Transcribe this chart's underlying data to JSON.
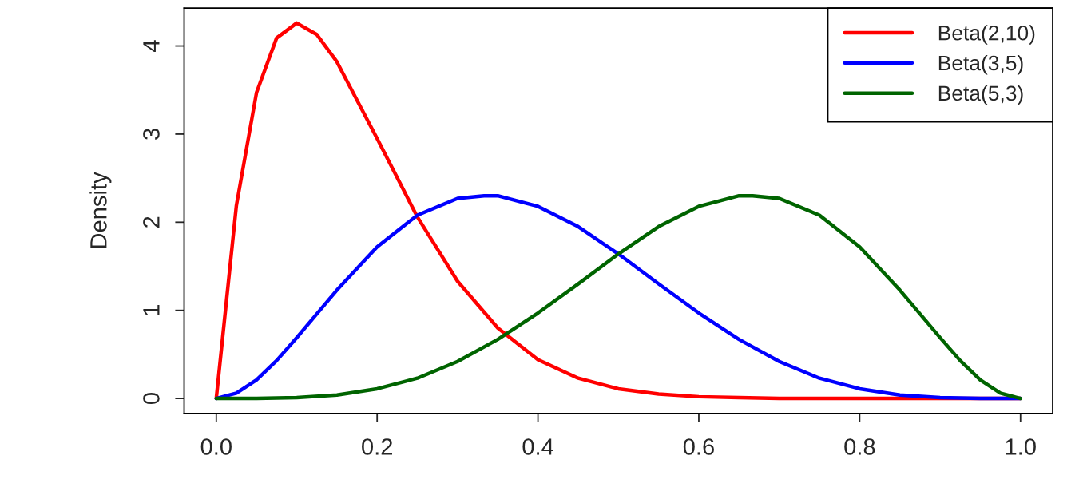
{
  "chart_data": {
    "type": "line",
    "ylabel": "Density",
    "xlim": [
      -0.04,
      1.04
    ],
    "ylim": [
      -0.17,
      4.43
    ],
    "xticks": [
      {
        "value": 0,
        "label": "0.0"
      },
      0.2,
      0.4,
      0.6,
      0.8,
      {
        "value": 1,
        "label": "1.0"
      }
    ],
    "yticks": [
      0,
      1,
      2,
      3,
      4
    ],
    "grid": false,
    "legend": "top right",
    "marker": "none",
    "line_style": "solid",
    "series": [
      {
        "name": "Beta(2,10)",
        "color": "#ff0000",
        "x": [
          0,
          0.025,
          0.05,
          0.075,
          0.1,
          0.125,
          0.15,
          0.2,
          0.25,
          0.3,
          0.35,
          0.4,
          0.45,
          0.5,
          0.55,
          0.6,
          0.65,
          0.7,
          0.8,
          0.9,
          1.0
        ],
        "values": [
          0,
          2.19,
          3.47,
          4.09,
          4.26,
          4.13,
          3.82,
          2.95,
          2.06,
          1.33,
          0.8,
          0.44,
          0.23,
          0.11,
          0.05,
          0.02,
          0.01,
          0,
          0,
          0,
          0
        ]
      },
      {
        "name": "Beta(3,5)",
        "color": "#0000ff",
        "x": [
          0,
          0.025,
          0.05,
          0.075,
          0.1,
          0.125,
          0.15,
          0.2,
          0.25,
          0.3,
          0.333,
          0.35,
          0.4,
          0.45,
          0.5,
          0.55,
          0.6,
          0.65,
          0.7,
          0.75,
          0.8,
          0.85,
          0.9,
          0.95,
          1.0
        ],
        "values": [
          0,
          0.06,
          0.21,
          0.43,
          0.69,
          0.96,
          1.23,
          1.72,
          2.08,
          2.27,
          2.3,
          2.3,
          2.18,
          1.95,
          1.64,
          1.3,
          0.97,
          0.67,
          0.42,
          0.23,
          0.11,
          0.04,
          0.01,
          0,
          0
        ]
      },
      {
        "name": "Beta(5,3)",
        "color": "#006400",
        "x": [
          0,
          0.05,
          0.1,
          0.15,
          0.2,
          0.25,
          0.3,
          0.35,
          0.4,
          0.45,
          0.5,
          0.55,
          0.6,
          0.65,
          0.667,
          0.7,
          0.75,
          0.8,
          0.85,
          0.875,
          0.9,
          0.925,
          0.95,
          0.975,
          1.0
        ],
        "values": [
          0,
          0,
          0.01,
          0.04,
          0.11,
          0.23,
          0.42,
          0.67,
          0.97,
          1.3,
          1.64,
          1.95,
          2.18,
          2.3,
          2.3,
          2.27,
          2.08,
          1.72,
          1.23,
          0.96,
          0.69,
          0.43,
          0.21,
          0.06,
          0
        ]
      }
    ]
  }
}
